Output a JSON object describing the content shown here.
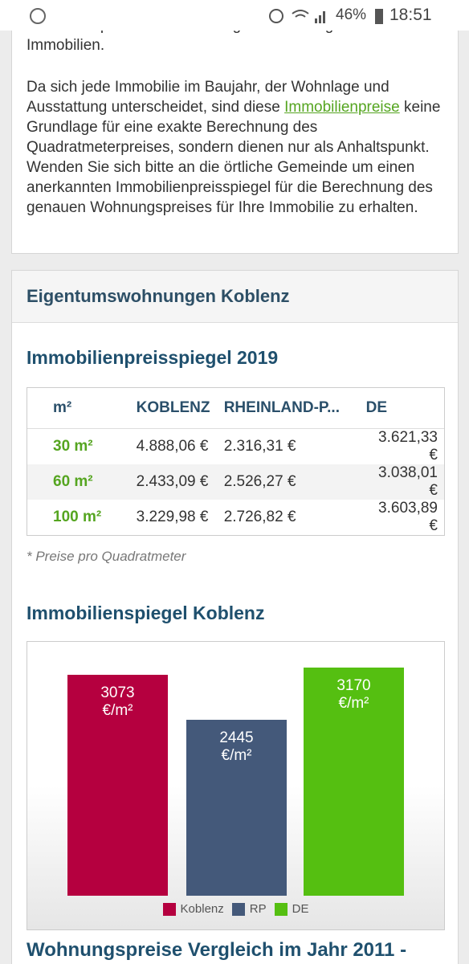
{
  "status_bar": {
    "battery": "46%",
    "time": "18:51"
  },
  "intro": {
    "paragraph_1": "Immobilienportal www.wohnungsboerse.net gelisteten Immobilien.",
    "paragraph_2_before": "Da sich jede Immobilie im Baujahr, der Wohnlage und Ausstattung unterscheidet, sind diese",
    "paragraph_2_link": "Immobilienpreise",
    "paragraph_2_after": "keine Grundlage für eine exakte Berechnung des Quadratmeterpreises, sondern dienen nur als Anhaltspunkt. Wenden Sie sich bitte an die örtliche Gemeinde um einen anerkannten Immobilienpreisspiegel für die Berechnung des genauen Wohnungspreises für Ihre Immobilie zu erhalten."
  },
  "card": {
    "title": "Eigentumswohnungen Koblenz",
    "table_heading": "Immobilienpreisspiegel 2019",
    "table": {
      "header": [
        "m²",
        "KOBLENZ",
        "RHEINLAND-P...",
        "DE"
      ],
      "rows": [
        [
          "30 m²",
          "4.888,06 €",
          "2.316,31 €",
          "3.621,33 €"
        ],
        [
          "60 m²",
          "2.433,09 €",
          "2.526,27 €",
          "3.038,01 €"
        ],
        [
          "100 m²",
          "3.229,98 €",
          "2.726,82 €",
          "3.603,89 €"
        ]
      ]
    },
    "footnote": "* Preise pro Quadratmeter"
  },
  "chart_data": {
    "type": "bar",
    "title": "Immobilienspiegel Koblenz",
    "categories": [
      "Koblenz",
      "RP",
      "DE"
    ],
    "values": [
      3073,
      2445,
      3170
    ],
    "value_labels": [
      "3073 €/m²",
      "2445 €/m²",
      "3170 €/m²"
    ],
    "colors": [
      "#b5003f",
      "#44597a",
      "#55bf11"
    ]
  },
  "next_heading": "Wohnungspreise Vergleich im Jahr 2011 -"
}
